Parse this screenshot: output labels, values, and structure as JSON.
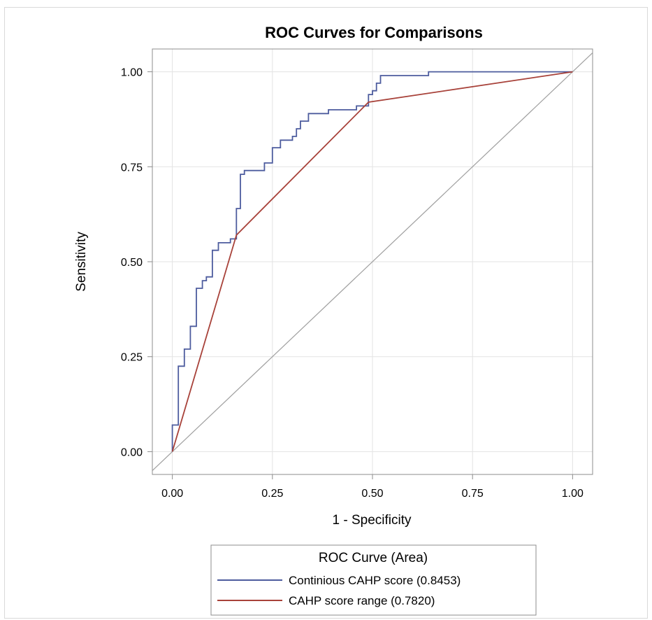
{
  "chart_data": {
    "type": "line",
    "title": "ROC Curves for Comparisons",
    "xlabel": "1 - Specificity",
    "ylabel": "Sensitivity",
    "xlim": [
      -0.05,
      1.05
    ],
    "ylim": [
      -0.06,
      1.06
    ],
    "xticks": [
      0,
      0.25,
      0.5,
      0.75,
      1
    ],
    "yticks": [
      0,
      0.25,
      0.5,
      0.75,
      1
    ],
    "xtick_labels": [
      "0.00",
      "0.25",
      "0.50",
      "0.75",
      "1.00"
    ],
    "ytick_labels": [
      "0.00",
      "0.25",
      "0.50",
      "0.75",
      "1.00"
    ],
    "grid": true,
    "legend": {
      "title": "ROC Curve (Area)",
      "placement": "bottom",
      "entries": [
        "Continious CAHP score  (0.8453)",
        "CAHP score range  (0.7820)"
      ]
    },
    "series": [
      {
        "name": "Continious CAHP score  (0.8453)",
        "color": "#4d5c9e",
        "step": true,
        "x": [
          0,
          0,
          0.015,
          0.015,
          0.03,
          0.03,
          0.045,
          0.045,
          0.06,
          0.06,
          0.075,
          0.075,
          0.085,
          0.085,
          0.1,
          0.1,
          0.115,
          0.115,
          0.145,
          0.145,
          0.16,
          0.16,
          0.17,
          0.17,
          0.18,
          0.18,
          0.21,
          0.21,
          0.23,
          0.23,
          0.25,
          0.25,
          0.27,
          0.27,
          0.3,
          0.3,
          0.31,
          0.31,
          0.32,
          0.32,
          0.34,
          0.34,
          0.35,
          0.35,
          0.39,
          0.39,
          0.46,
          0.46,
          0.49,
          0.49,
          0.5,
          0.5,
          0.51,
          0.51,
          0.52,
          0.52,
          0.54,
          0.54,
          0.64,
          0.64,
          1.0
        ],
        "y": [
          0,
          0.07,
          0.07,
          0.225,
          0.225,
          0.27,
          0.27,
          0.33,
          0.33,
          0.43,
          0.43,
          0.45,
          0.45,
          0.46,
          0.46,
          0.53,
          0.53,
          0.55,
          0.55,
          0.56,
          0.56,
          0.64,
          0.64,
          0.73,
          0.73,
          0.74,
          0.74,
          0.74,
          0.74,
          0.76,
          0.76,
          0.8,
          0.8,
          0.82,
          0.82,
          0.83,
          0.83,
          0.85,
          0.85,
          0.87,
          0.87,
          0.89,
          0.89,
          0.89,
          0.89,
          0.9,
          0.9,
          0.91,
          0.91,
          0.94,
          0.94,
          0.95,
          0.95,
          0.97,
          0.97,
          0.99,
          0.99,
          0.99,
          0.99,
          1.0,
          1.0
        ]
      },
      {
        "name": "CAHP score range  (0.7820)",
        "color": "#a8423a",
        "step": false,
        "x": [
          0,
          0.16,
          0.49,
          1.0
        ],
        "y": [
          0,
          0.57,
          0.92,
          1.0
        ]
      }
    ],
    "reference_line": {
      "x": [
        -0.05,
        1.05
      ],
      "y": [
        -0.05,
        1.05
      ],
      "color": "#a0a0a0"
    }
  }
}
